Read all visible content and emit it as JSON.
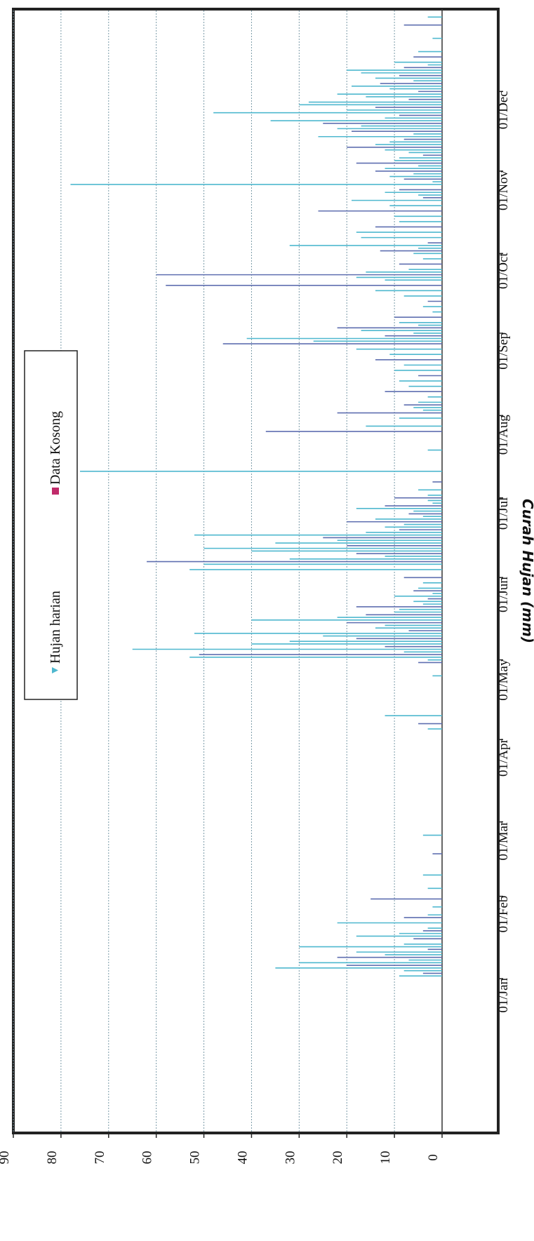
{
  "chart_data": {
    "type": "bar",
    "orientation": "rotated-90-clockwise",
    "ylabel": "Curah Hujan (mm)",
    "xlabel": "",
    "ylim": [
      0,
      90
    ],
    "y_ticks": [
      "0",
      "10",
      "20",
      "30",
      "40",
      "50",
      "60",
      "70",
      "80",
      "90"
    ],
    "x_ticks": [
      "01/Jan",
      "01/Feb",
      "01/Mar",
      "01/Apr",
      "01/May",
      "01/Jun",
      "01/Jul",
      "01/Aug",
      "01/Sep",
      "01/Oct",
      "01/Nov",
      "01/Dec"
    ],
    "grid": true,
    "legend_position": "top-center",
    "legend": [
      {
        "name": "Hujan harian",
        "color": "#4fb8cf",
        "marker": "triangle"
      },
      {
        "name": "Data Kosong",
        "color": "#c02a6a",
        "marker": "square"
      }
    ],
    "series": [
      {
        "name": "Hujan harian",
        "color": "#4fb8cf",
        "alt_color": "#5f6fb0",
        "day_of_year": [
          2,
          3,
          4,
          5,
          6,
          7,
          8,
          9,
          10,
          11,
          12,
          13,
          14,
          16,
          17,
          18,
          19,
          20,
          22,
          24,
          25,
          28,
          31,
          35,
          40,
          48,
          55,
          95,
          97,
          100,
          115,
          120,
          121,
          122,
          123,
          124,
          125,
          126,
          127,
          128,
          129,
          130,
          131,
          132,
          133,
          134,
          135,
          136,
          137,
          138,
          139,
          140,
          141,
          142,
          143,
          144,
          145,
          146,
          147,
          148,
          150,
          152,
          155,
          157,
          158,
          159,
          160,
          161,
          162,
          163,
          164,
          165,
          166,
          167,
          168,
          169,
          170,
          171,
          172,
          173,
          174,
          175,
          176,
          177,
          178,
          179,
          180,
          181,
          182,
          183,
          185,
          188,
          192,
          200,
          207,
          209,
          212,
          214,
          215,
          216,
          217,
          218,
          220,
          222,
          224,
          226,
          228,
          230,
          232,
          234,
          236,
          238,
          240,
          241,
          242,
          243,
          244,
          245,
          246,
          247,
          248,
          250,
          252,
          254,
          256,
          258,
          260,
          262,
          264,
          265,
          266,
          267,
          268,
          270,
          272,
          274,
          275,
          276,
          277,
          278,
          280,
          282,
          284,
          286,
          288,
          290,
          292,
          294,
          295,
          296,
          297,
          298,
          300,
          301,
          302,
          303,
          304,
          305,
          306,
          307,
          308,
          309,
          310,
          311,
          312,
          313,
          314,
          315,
          316,
          317,
          318,
          319,
          320,
          321,
          322,
          323,
          324,
          325,
          326,
          327,
          328,
          329,
          330,
          331,
          332,
          333,
          334,
          335,
          336,
          337,
          338,
          339,
          340,
          341,
          342,
          343,
          344,
          345,
          346,
          348,
          350,
          355,
          360,
          363
        ],
        "values": [
          9,
          4,
          8,
          35,
          20,
          30,
          7,
          22,
          12,
          18,
          3,
          30,
          8,
          6,
          18,
          9,
          4,
          3,
          22,
          8,
          3,
          2,
          15,
          3,
          4,
          2,
          4,
          3,
          5,
          12,
          2,
          5,
          3,
          53,
          51,
          8,
          65,
          12,
          40,
          32,
          18,
          25,
          52,
          7,
          14,
          12,
          20,
          40,
          22,
          16,
          10,
          9,
          18,
          4,
          6,
          3,
          10,
          2,
          6,
          5,
          4,
          8,
          53,
          50,
          62,
          32,
          12,
          18,
          40,
          50,
          20,
          35,
          22,
          25,
          52,
          16,
          9,
          12,
          8,
          20,
          14,
          4,
          7,
          6,
          18,
          12,
          2,
          3,
          10,
          3,
          5,
          2,
          76,
          3,
          37,
          16,
          9,
          22,
          4,
          6,
          8,
          5,
          3,
          12,
          7,
          9,
          5,
          10,
          8,
          14,
          11,
          18,
          46,
          27,
          41,
          12,
          6,
          17,
          22,
          5,
          9,
          10,
          2,
          4,
          3,
          8,
          14,
          58,
          12,
          18,
          60,
          16,
          7,
          9,
          4,
          6,
          13,
          5,
          32,
          3,
          17,
          18,
          14,
          9,
          10,
          26,
          11,
          19,
          4,
          5,
          12,
          9,
          78,
          2,
          8,
          11,
          6,
          14,
          12,
          5,
          18,
          10,
          9,
          4,
          7,
          12,
          20,
          14,
          11,
          8,
          26,
          6,
          19,
          22,
          17,
          25,
          36,
          12,
          9,
          48,
          20,
          14,
          30,
          28,
          7,
          16,
          22,
          5,
          11,
          19,
          13,
          6,
          14,
          9,
          17,
          20,
          8,
          3,
          10,
          6,
          5,
          2,
          8,
          3
        ]
      }
    ]
  }
}
